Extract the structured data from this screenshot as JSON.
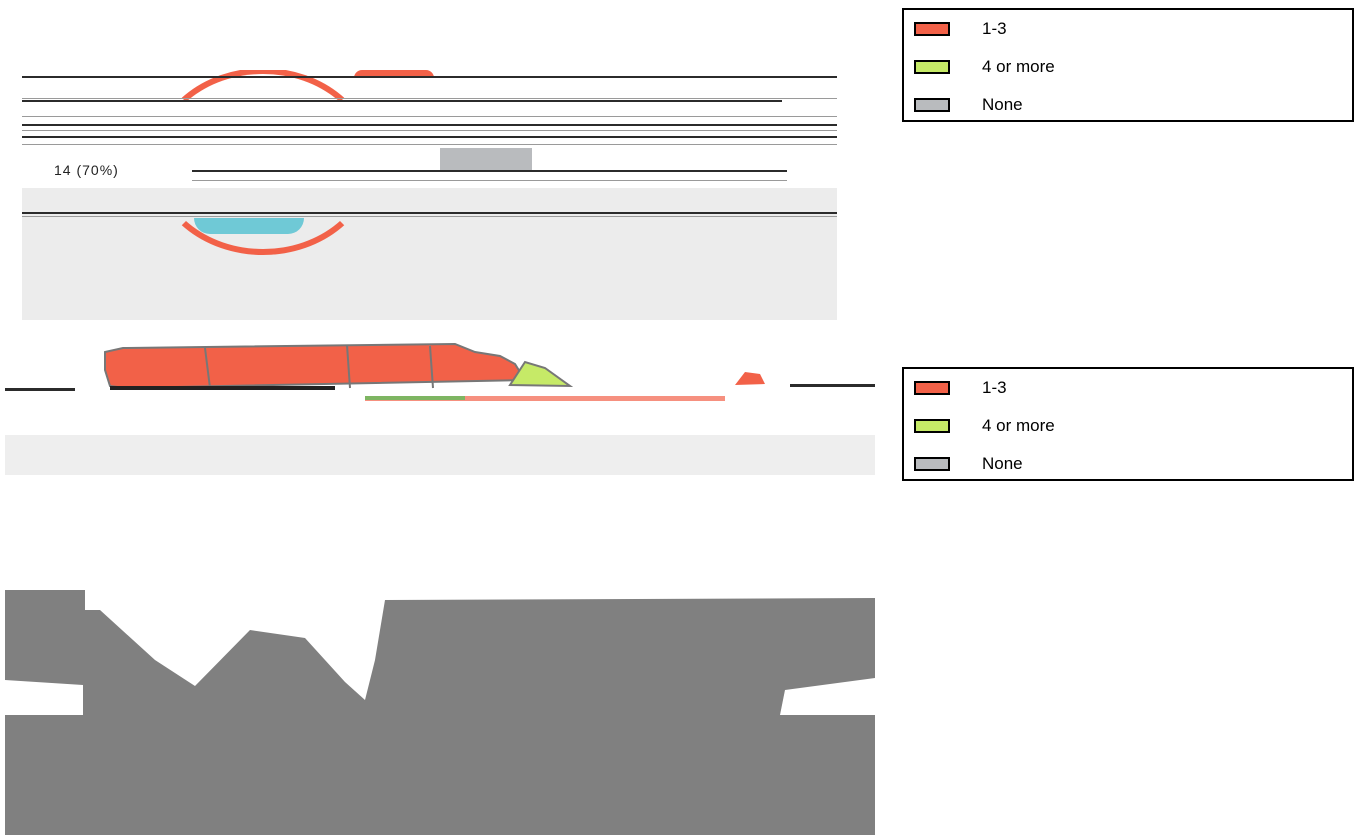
{
  "garbled_label": "14 (70%)",
  "legends": [
    {
      "items": [
        {
          "label": "1-3",
          "color": "#f26148",
          "icon": "swatch"
        },
        {
          "label": "4 or more",
          "color": "#c6ea67",
          "icon": "swatch"
        },
        {
          "label": "None",
          "color": "#b9bbbe",
          "icon": "swatch"
        }
      ]
    },
    {
      "items": [
        {
          "label": "1-3",
          "color": "#f26148",
          "icon": "swatch"
        },
        {
          "label": "4 or more",
          "color": "#c6ea67",
          "icon": "swatch"
        },
        {
          "label": "None",
          "color": "#b9bbbe",
          "icon": "swatch"
        }
      ]
    }
  ],
  "colors": {
    "low": "#f26148",
    "high": "#c6ea67",
    "none": "#b9bbbe",
    "water": "#808080",
    "accent": "#6fc9d6"
  }
}
